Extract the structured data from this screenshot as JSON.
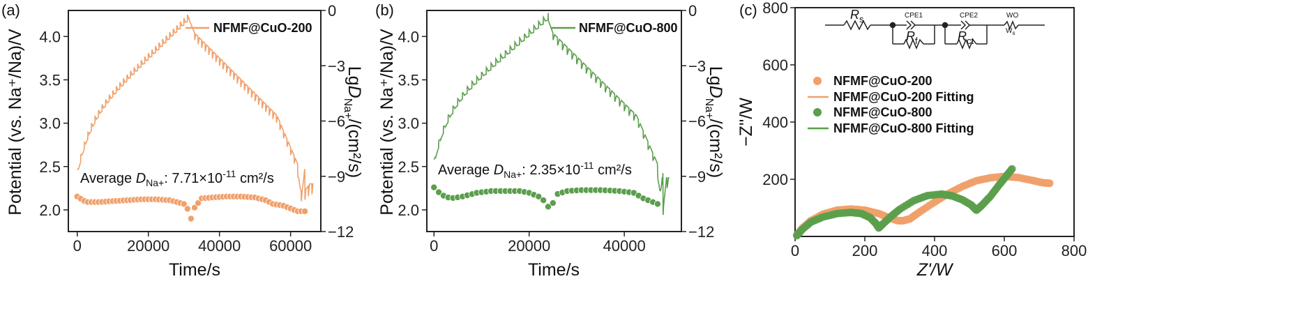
{
  "colors": {
    "orange": "#f0a06a",
    "green": "#5b9e4c",
    "axis": "#222222"
  },
  "chart_data": [
    {
      "type": "line",
      "panel_label": "(a)",
      "series_name": "NFMF@CuO-200",
      "color": "#f0a06a",
      "xlabel": "Time/s",
      "ylabel_left": "Potential (vs. Na⁺/Na)/V",
      "ylabel_right": "LgD_Na+/(cm²/s)",
      "xlim": [
        -2500,
        68500
      ],
      "ylim_left": [
        1.75,
        4.3
      ],
      "ylim_right": [
        -12,
        0
      ],
      "xticks": [
        "0",
        "20000",
        "40000",
        "60000"
      ],
      "yticks_left": [
        "2.0",
        "2.5",
        "3.0",
        "3.5",
        "4.0"
      ],
      "yticks_right": [
        "−12",
        "−9",
        "−6",
        "−3",
        "0"
      ],
      "annotation_prefix": "Average ",
      "annotation_symbol": "D",
      "annotation_sub": "Na+",
      "annotation_value": ": 7.71×10",
      "annotation_exp": "-11",
      "annotation_unit": " cm²/s",
      "t_end": 66500,
      "t_charge_end": 31500,
      "t_relax_end": 33000,
      "t_discharge_end": 62000,
      "v_start": 2.38,
      "v_top": 4.19,
      "v_bottom": 2.22,
      "v_end": 2.3,
      "d_points": [
        [
          0,
          -10.1
        ],
        [
          2500,
          -10.4
        ],
        [
          6000,
          -10.4
        ],
        [
          10000,
          -10.35
        ],
        [
          14000,
          -10.3
        ],
        [
          18000,
          -10.25
        ],
        [
          22000,
          -10.25
        ],
        [
          26000,
          -10.3
        ],
        [
          30000,
          -10.5
        ],
        [
          31500,
          -10.9
        ],
        [
          32000,
          -11.3
        ],
        [
          33000,
          -10.7
        ],
        [
          35000,
          -10.2
        ],
        [
          38000,
          -10.15
        ],
        [
          42000,
          -10.1
        ],
        [
          46000,
          -10.1
        ],
        [
          50000,
          -10.15
        ],
        [
          53000,
          -10.3
        ],
        [
          55000,
          -10.5
        ],
        [
          58000,
          -10.6
        ],
        [
          62000,
          -10.9
        ],
        [
          64000,
          -10.9
        ]
      ]
    },
    {
      "type": "line",
      "panel_label": "(b)",
      "series_name": "NFMF@CuO-800",
      "color": "#5b9e4c",
      "xlabel": "Time/s",
      "ylabel_left": "Potential (vs. Na⁺/Na)/V",
      "ylabel_right": "LgD_Na+/(cm²/s)",
      "xlim": [
        -1500,
        52000
      ],
      "ylim_left": [
        1.75,
        4.3
      ],
      "ylim_right": [
        -12,
        0
      ],
      "xticks": [
        "0",
        "20000",
        "40000"
      ],
      "yticks_left": [
        "2.0",
        "2.5",
        "3.0",
        "3.5",
        "4.0"
      ],
      "yticks_right": [
        "−12",
        "−9",
        "−6",
        "−3",
        "0"
      ],
      "annotation_prefix": "Average ",
      "annotation_symbol": "D",
      "annotation_sub": "Na+",
      "annotation_value": ": 2.35×10",
      "annotation_exp": "-11",
      "annotation_unit": " cm²/s",
      "t_end": 49500,
      "t_charge_end": 24000,
      "t_relax_end": 25000,
      "t_discharge_end": 47000,
      "v_start": 2.5,
      "v_top": 4.19,
      "v_bottom": 1.98,
      "v_end": 2.37,
      "d_points": [
        [
          0,
          -9.6
        ],
        [
          1500,
          -10.0
        ],
        [
          3500,
          -10.2
        ],
        [
          6000,
          -10.1
        ],
        [
          9000,
          -9.9
        ],
        [
          12000,
          -9.8
        ],
        [
          15000,
          -9.8
        ],
        [
          18000,
          -9.8
        ],
        [
          20000,
          -9.9
        ],
        [
          22000,
          -10.1
        ],
        [
          23500,
          -10.4
        ],
        [
          24500,
          -10.9
        ],
        [
          25500,
          -10.0
        ],
        [
          28000,
          -9.8
        ],
        [
          31000,
          -9.75
        ],
        [
          35000,
          -9.75
        ],
        [
          39000,
          -9.8
        ],
        [
          42000,
          -9.9
        ],
        [
          44000,
          -10.2
        ],
        [
          46000,
          -10.4
        ],
        [
          47000,
          -10.5
        ]
      ]
    },
    {
      "type": "scatter",
      "panel_label": "(c)",
      "xlabel": "Z'/W",
      "ylabel": "−Z''/W",
      "xlim": [
        0,
        800
      ],
      "ylim": [
        0,
        800
      ],
      "xticks": [
        "0",
        "200",
        "400",
        "600",
        "800"
      ],
      "yticks": [
        "200",
        "400",
        "600",
        "800"
      ],
      "legend": [
        "NFMF@CuO-200",
        "NFMF@CuO-200 Fitting",
        "NFMF@CuO-800",
        "NFMF@CuO-800 Fitting"
      ],
      "circuit": {
        "rs": "R",
        "rs_sub": "s",
        "rf": "R",
        "rf_sub": "f",
        "rct": "R",
        "rct_sub": "ct",
        "cpe1": "CPE1",
        "cpe2": "CPE2",
        "wo": "WO",
        "w_label": "W",
        "w_sub": "s"
      },
      "series": [
        {
          "name": "NFMF@CuO-200",
          "points": [
            [
              5,
              5
            ],
            [
              20,
              28
            ],
            [
              45,
              55
            ],
            [
              80,
              78
            ],
            [
              120,
              92
            ],
            [
              160,
              96
            ],
            [
              200,
              92
            ],
            [
              240,
              80
            ],
            [
              270,
              65
            ],
            [
              295,
              55
            ],
            [
              310,
              55
            ],
            [
              330,
              62
            ],
            [
              360,
              88
            ],
            [
              400,
              120
            ],
            [
              440,
              150
            ],
            [
              480,
              175
            ],
            [
              520,
              195
            ],
            [
              560,
              205
            ],
            [
              600,
              210
            ],
            [
              640,
              206
            ],
            [
              680,
              196
            ],
            [
              710,
              188
            ],
            [
              730,
              186
            ]
          ]
        },
        {
          "name": "NFMF@CuO-800",
          "points": [
            [
              5,
              3
            ],
            [
              20,
              24
            ],
            [
              45,
              50
            ],
            [
              80,
              68
            ],
            [
              120,
              80
            ],
            [
              160,
              84
            ],
            [
              190,
              80
            ],
            [
              215,
              66
            ],
            [
              232,
              45
            ],
            [
              240,
              30
            ],
            [
              252,
              44
            ],
            [
              275,
              70
            ],
            [
              300,
              95
            ],
            [
              340,
              125
            ],
            [
              380,
              143
            ],
            [
              420,
              148
            ],
            [
              450,
              142
            ],
            [
              480,
              128
            ],
            [
              505,
              110
            ],
            [
              520,
              92
            ],
            [
              535,
              108
            ],
            [
              560,
              140
            ],
            [
              585,
              180
            ],
            [
              605,
              210
            ],
            [
              622,
              236
            ]
          ]
        }
      ]
    }
  ]
}
